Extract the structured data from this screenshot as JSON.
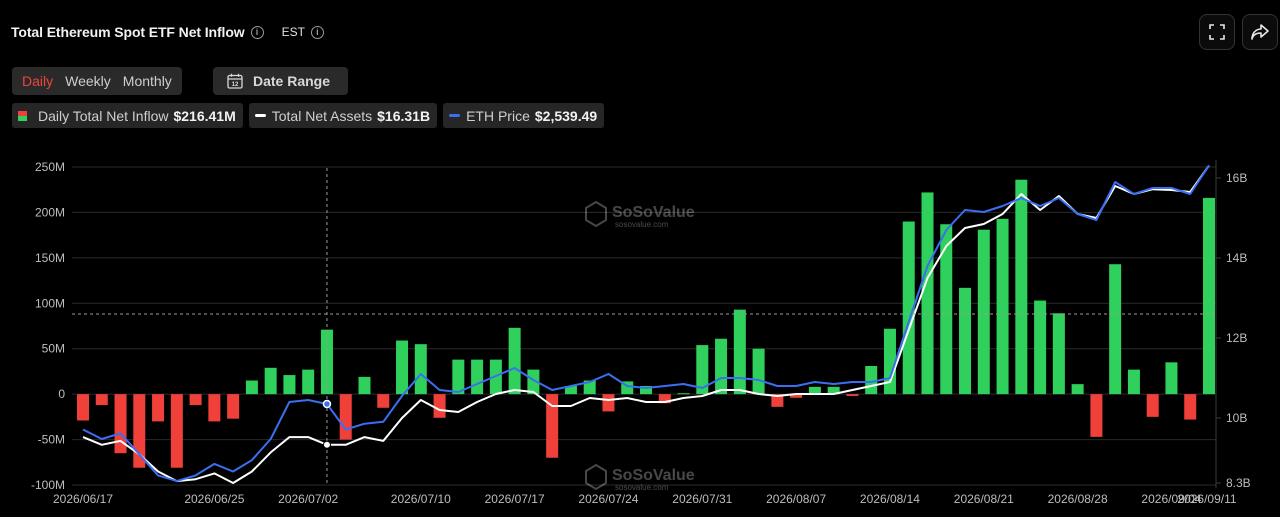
{
  "header": {
    "title": "Total Ethereum Spot ETF Net Inflow",
    "timezone": "EST"
  },
  "range_tabs": [
    {
      "label": "Daily",
      "active": true
    },
    {
      "label": "Weekly",
      "active": false
    },
    {
      "label": "Monthly",
      "active": false
    }
  ],
  "date_range_label": "Date Range",
  "legend": {
    "inflow": {
      "label": "Daily Total Net Inflow",
      "value": "$216.41M"
    },
    "assets": {
      "label": "Total Net Assets",
      "value": "$16.31B"
    },
    "price": {
      "label": "ETH Price",
      "value": "$2,539.49"
    }
  },
  "watermark": {
    "brand": "SoSoValue",
    "url": "sosovalue.com"
  },
  "colors": {
    "positive": "#2fd05b",
    "negative": "#f0403a",
    "assets_line": "#ffffff",
    "price_line": "#3a6ff2",
    "grid": "#2a2a2a",
    "axis_text": "#bdbdbd"
  },
  "icons": {
    "fullscreen": "fullscreen-icon",
    "share": "share-icon",
    "calendar": "calendar-icon",
    "info": "info-icon"
  },
  "chart_data": {
    "type": "bar",
    "x_ticks": [
      "2026/06/17",
      "2026/06/25",
      "2026/07/02",
      "2026/07/10",
      "2026/07/17",
      "2026/07/24",
      "2026/07/31",
      "2026/08/07",
      "2026/08/14",
      "2026/08/21",
      "2026/08/28",
      "2026/09/04",
      "2026/09/11"
    ],
    "y_left_ticks": [
      "250M",
      "200M",
      "150M",
      "100M",
      "50M",
      "0",
      "-50M",
      "-100M"
    ],
    "y_left_range": [
      -100,
      250
    ],
    "y_right_ticks": [
      "16B",
      "14B",
      "12B",
      "10B",
      "8.3B"
    ],
    "y_right_range": [
      8.3,
      16.31
    ],
    "grid": true,
    "series": [
      {
        "name": "Daily Total Net Inflow",
        "type": "bar",
        "unit": "M USD",
        "values": [
          -29,
          -12,
          -65,
          -81,
          -30,
          -81,
          -12,
          -30,
          -27,
          15,
          29,
          21,
          27,
          71,
          -50,
          19,
          -15,
          59,
          55,
          -26,
          38,
          38,
          38,
          73,
          27,
          -70,
          9,
          15,
          -19,
          14,
          9,
          -10,
          1,
          54,
          61,
          93,
          50,
          -14,
          -4,
          8,
          8,
          -2,
          31,
          72,
          190,
          222,
          187,
          117,
          181,
          193,
          236,
          103,
          89,
          11,
          -47,
          143,
          27,
          -25,
          35,
          -28,
          216
        ]
      },
      {
        "name": "Total Net Assets",
        "type": "line",
        "unit": "B USD",
        "values": [
          9.5,
          9.3,
          9.4,
          9.05,
          8.6,
          8.35,
          8.4,
          8.55,
          8.3,
          8.6,
          9.1,
          9.5,
          9.5,
          9.3,
          9.3,
          9.5,
          9.4,
          10,
          10.45,
          10.2,
          10.15,
          10.4,
          10.6,
          10.7,
          10.65,
          10.3,
          10.3,
          10.5,
          10.45,
          10.5,
          10.4,
          10.4,
          10.5,
          10.55,
          10.7,
          10.7,
          10.6,
          10.55,
          10.6,
          10.6,
          10.6,
          10.7,
          10.8,
          10.9,
          12.2,
          13.5,
          14.3,
          14.75,
          14.85,
          15.1,
          15.6,
          15.2,
          15.55,
          15.1,
          15.0,
          15.8,
          15.6,
          15.72,
          15.7,
          15.65,
          16.31
        ]
      },
      {
        "name": "ETH Price",
        "type": "line",
        "unit": "USD (right axis)",
        "values": [
          9.7,
          9.45,
          9.6,
          9.05,
          8.5,
          8.35,
          8.5,
          8.8,
          8.6,
          8.9,
          9.45,
          10.4,
          10.45,
          10.35,
          9.7,
          9.85,
          9.9,
          10.55,
          11.1,
          10.7,
          10.65,
          10.85,
          11.05,
          11.25,
          10.95,
          10.7,
          10.8,
          10.9,
          11.1,
          10.8,
          10.75,
          10.8,
          10.85,
          10.75,
          11.0,
          11.0,
          10.95,
          10.8,
          10.8,
          10.9,
          10.85,
          10.9,
          10.9,
          11.0,
          12.4,
          13.8,
          14.7,
          15.2,
          15.15,
          15.3,
          15.5,
          15.3,
          15.5,
          15.1,
          14.95,
          15.9,
          15.6,
          15.75,
          15.75,
          15.6,
          16.31
        ]
      }
    ]
  }
}
